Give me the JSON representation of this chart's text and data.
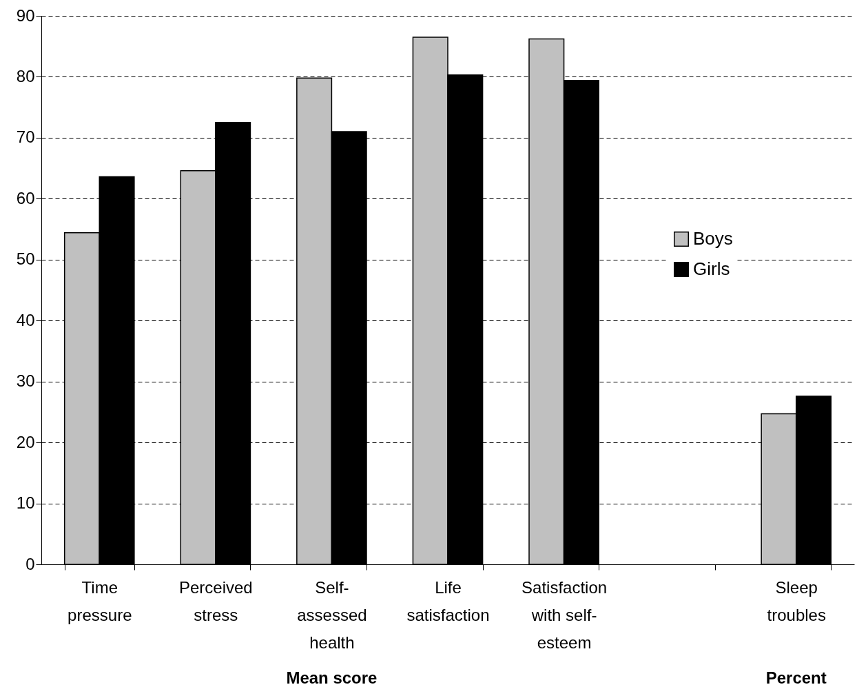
{
  "chart_data": {
    "type": "bar",
    "categories": [
      "Time pressure",
      "Perceived stress",
      "Self-assessed health",
      "Life satisfaction",
      "Satisfaction with self-esteem",
      null,
      "Sleep troubles"
    ],
    "series": [
      {
        "name": "Boys",
        "color": "#c0c0c0",
        "values": [
          54.4,
          64.6,
          79.8,
          86.5,
          86.2,
          null,
          24.7
        ]
      },
      {
        "name": "Girls",
        "color": "#000000",
        "values": [
          63.6,
          72.5,
          71.0,
          80.3,
          79.4,
          null,
          27.6
        ]
      }
    ],
    "ylim": [
      0,
      90
    ],
    "yticks": [
      0,
      10,
      20,
      30,
      40,
      50,
      60,
      70,
      80,
      90
    ],
    "grid": "y",
    "legend": "right",
    "annotations": [
      "Mean score",
      "Percent"
    ]
  }
}
